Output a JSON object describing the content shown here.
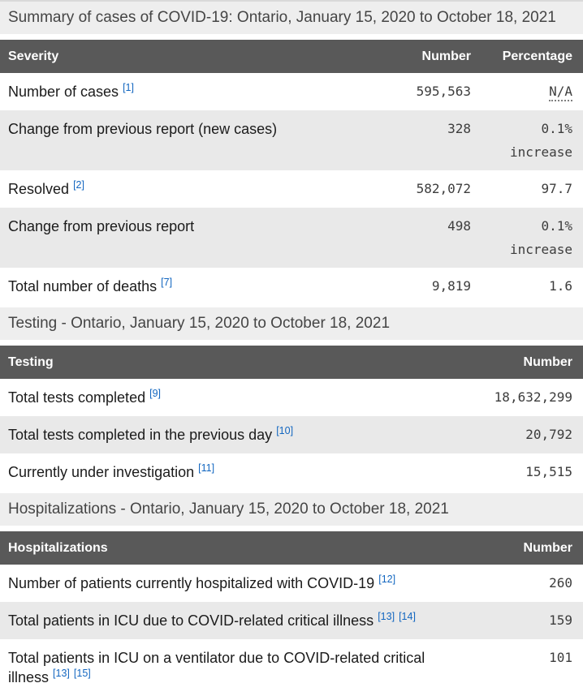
{
  "colors": {
    "header_bg": "#595959",
    "header_text": "#ffffff",
    "caption_bg": "#eeeeee",
    "stripe": "#e9e9e9",
    "footnote_link": "#1266c0",
    "label_text": "#1b1b1b",
    "number_text": "#3d3d3d"
  },
  "sections": [
    {
      "caption": "Summary of cases of COVID-19: Ontario, January 15, 2020 to October 18, 2021",
      "columns": [
        "Severity",
        "Number",
        "Percentage"
      ],
      "rows": [
        {
          "label": "Number of cases",
          "refs": [
            "1"
          ],
          "number": "595,563",
          "percentage": "N/A",
          "percentage_abbr": true
        },
        {
          "label": "Change from previous report (new cases)",
          "refs": [],
          "number": "328",
          "percentage": "0.1%",
          "percentage_note": "increase"
        },
        {
          "label": "Resolved",
          "refs": [
            "2"
          ],
          "number": "582,072",
          "percentage": "97.7"
        },
        {
          "label": "Change from previous report",
          "refs": [],
          "number": "498",
          "percentage": "0.1%",
          "percentage_note": "increase"
        },
        {
          "label": "Total number of deaths",
          "refs": [
            "7"
          ],
          "number": "9,819",
          "percentage": "1.6"
        }
      ]
    },
    {
      "caption": "Testing - Ontario, January 15, 2020 to October 18, 2021",
      "columns": [
        "Testing",
        "Number"
      ],
      "rows": [
        {
          "label": "Total tests completed",
          "refs": [
            "9"
          ],
          "number": "18,632,299"
        },
        {
          "label": "Total tests completed in the previous day",
          "refs": [
            "10"
          ],
          "number": "20,792"
        },
        {
          "label": "Currently under investigation",
          "refs": [
            "11"
          ],
          "number": "15,515"
        }
      ]
    },
    {
      "caption": "Hospitalizations - Ontario, January 15, 2020 to October 18, 2021",
      "columns": [
        "Hospitalizations",
        "Number"
      ],
      "rows": [
        {
          "label": "Number of patients currently hospitalized with COVID-19",
          "refs": [
            "12"
          ],
          "number": "260"
        },
        {
          "label": "Total patients in ICU due to COVID-related critical illness",
          "refs": [
            "13",
            "14"
          ],
          "number": "159"
        },
        {
          "label": "Total patients in ICU on a ventilator due to COVID-related critical illness",
          "refs": [
            "13",
            "15"
          ],
          "number": "101"
        }
      ]
    }
  ]
}
